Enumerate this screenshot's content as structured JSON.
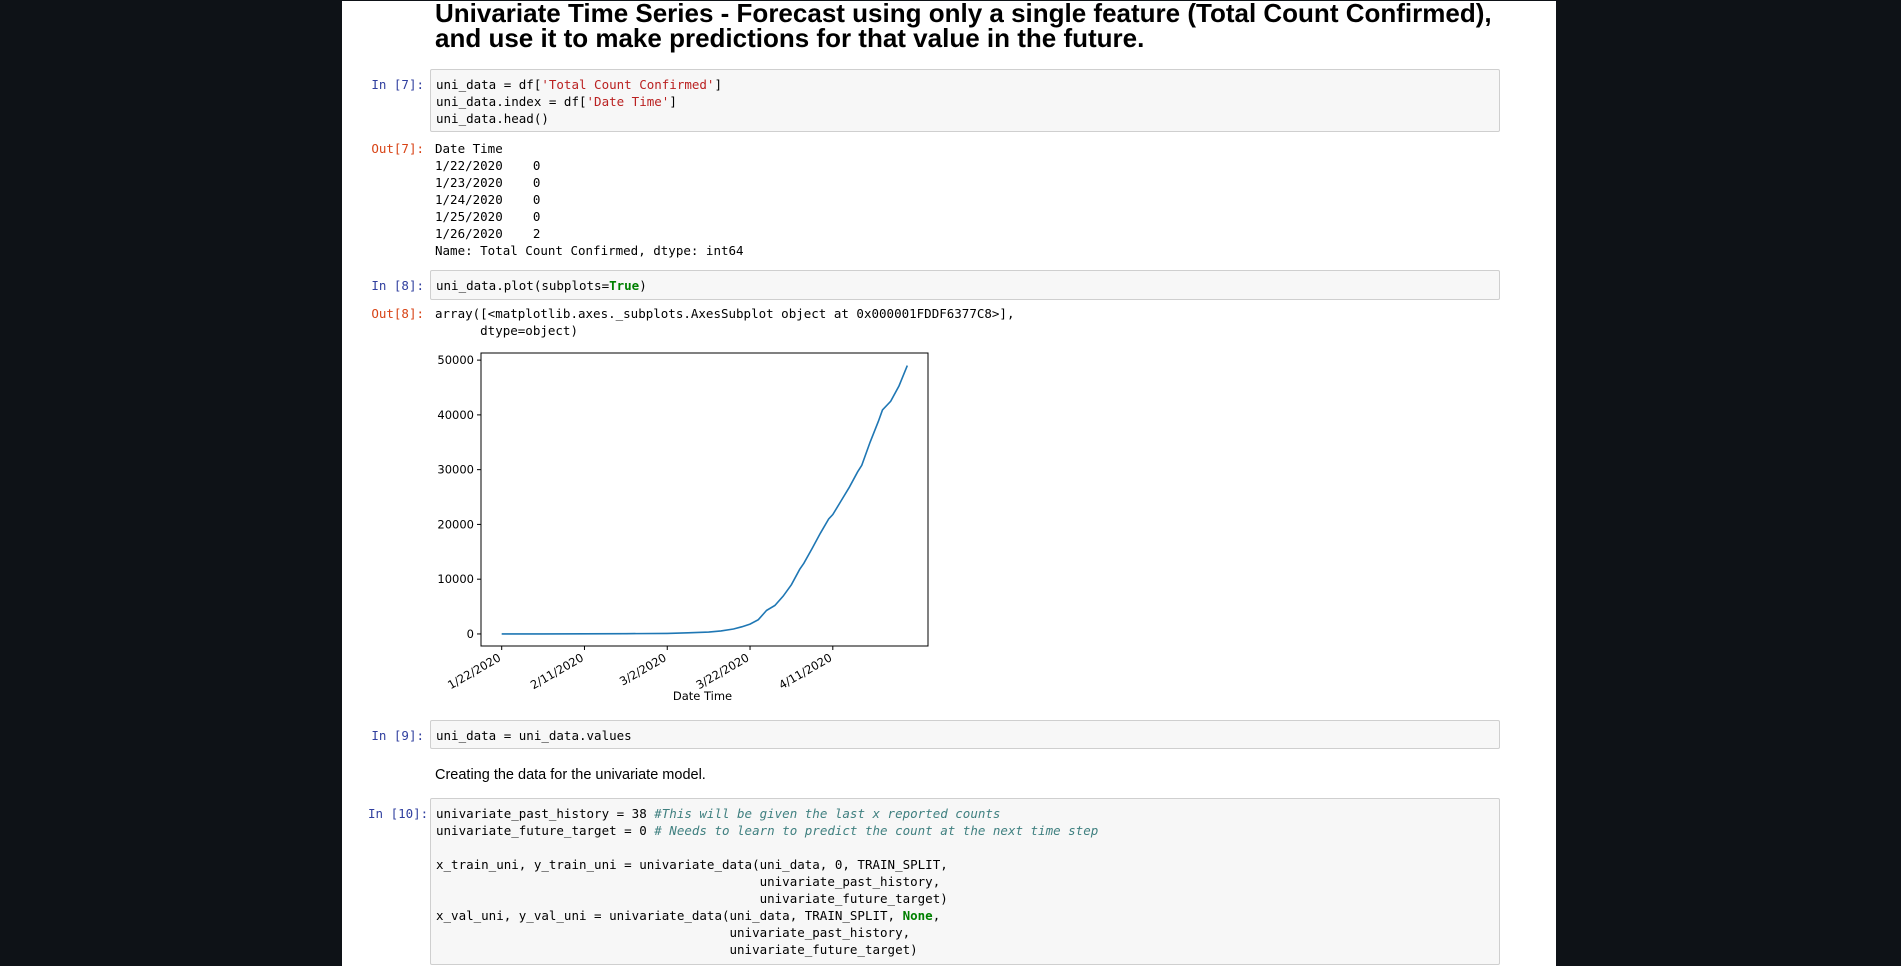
{
  "header": {
    "title": "Univariate Time Series - Forecast using only a single feature (Total Count Confirmed), and use it to make predictions for that value in the future."
  },
  "cells": [
    {
      "input": {
        "prompt": "In [7]:",
        "blocks": [
          [
            [
              "uni_data = df[",
              {
                "text": "'Total Count Confirmed'",
                "color": "#ba2121"
              },
              "]"
            ],
            [
              "uni_data.index = df[",
              {
                "text": "'Date Time'",
                "color": "#ba2121"
              },
              "]"
            ],
            [
              "uni_data.head()"
            ]
          ]
        ]
      },
      "output": {
        "prompt": "Out[7]:",
        "lines": [
          "Date Time",
          "1/22/2020    0",
          "1/23/2020    0",
          "1/24/2020    0",
          "1/25/2020    0",
          "1/26/2020    2",
          "Name: Total Count Confirmed, dtype: int64"
        ]
      }
    },
    {
      "input": {
        "prompt": "In [8]:",
        "blocks": [
          [
            [
              "uni_data.plot(subplots=",
              {
                "text": "True",
                "color": "#008000",
                "bold": true
              },
              ")"
            ]
          ]
        ]
      },
      "output": {
        "prompt": "Out[8]:",
        "lines": [
          "array([<matplotlib.axes._subplots.AxesSubplot object at 0x000001FDDF6377C8>],",
          "      dtype=object)"
        ]
      }
    },
    {
      "input": {
        "prompt": "In [9]:",
        "blocks": [
          [
            [
              "uni_data = uni_data.values"
            ]
          ]
        ]
      }
    },
    {
      "markdown": "Creating the data for the univariate model."
    },
    {
      "input": {
        "prompt": "In [10]:",
        "blocks": [
          [
            [
              "univariate_past_history = 38 ",
              {
                "text": "#This will be given the last x reported counts",
                "color": "#408080",
                "italic": true
              }
            ],
            [
              "univariate_future_target = 0 ",
              {
                "text": "# Needs to learn to predict the count at the next time step",
                "color": "#408080",
                "italic": true
              }
            ]
          ],
          [
            [
              "x_train_uni, y_train_uni = univariate_data(uni_data, 0, TRAIN_SPLIT,"
            ],
            [
              "                                           univariate_past_history,"
            ],
            [
              "                                           univariate_future_target)"
            ],
            [
              "x_val_uni, y_val_uni = univariate_data(uni_data, TRAIN_SPLIT, ",
              {
                "text": "None",
                "color": "#008000",
                "bold": true
              },
              ","
            ],
            [
              "                                       univariate_past_history,"
            ],
            [
              "                                       univariate_future_target)"
            ]
          ]
        ]
      }
    }
  ],
  "chart_data": {
    "type": "line",
    "xlabel": "Date Time",
    "color": "#1f77b4",
    "x": [
      "1/22/2020",
      "1/26/2020",
      "2/1/2020",
      "2/11/2020",
      "2/21/2020",
      "3/2/2020",
      "3/7/2020",
      "3/12/2020",
      "3/15/2020",
      "3/18/2020",
      "3/20/2020",
      "3/22/2020",
      "3/24/2020",
      "3/26/2020",
      "3/28/2020",
      "3/30/2020",
      "4/1/2020",
      "4/3/2020",
      "4/4/2020",
      "4/6/2020",
      "4/8/2020",
      "4/10/2020",
      "4/11/2020",
      "4/13/2020",
      "4/15/2020",
      "4/17/2020",
      "4/18/2020",
      "4/20/2020",
      "4/22/2020",
      "4/23/2020",
      "4/25/2020",
      "4/27/2020",
      "4/29/2020"
    ],
    "values": [
      0,
      2,
      10,
      30,
      50,
      100,
      200,
      350,
      550,
      900,
      1300,
      1800,
      2600,
      4300,
      5200,
      6900,
      9000,
      11800,
      12900,
      15600,
      18400,
      21000,
      21800,
      24300,
      26800,
      29600,
      30800,
      35000,
      38800,
      40900,
      42500,
      45300,
      49000
    ],
    "xlim": [
      "1/17/2020",
      "5/4/2020"
    ],
    "xticks": [
      "1/22/2020",
      "2/11/2020",
      "3/2/2020",
      "3/22/2020",
      "4/11/2020"
    ],
    "ylim": [
      -2200,
      51300
    ],
    "yticks": [
      0,
      10000,
      20000,
      30000,
      40000,
      50000
    ]
  }
}
